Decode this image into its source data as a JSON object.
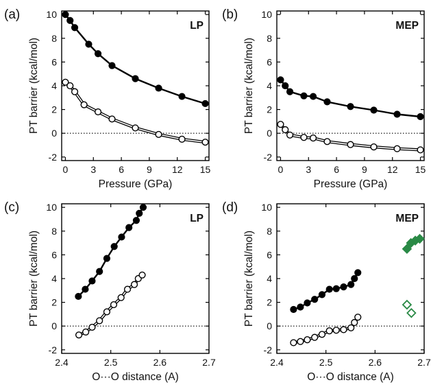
{
  "figure": {
    "panels": [
      {
        "letter": "(a)",
        "tag": "LP"
      },
      {
        "letter": "(b)",
        "tag": "MEP"
      },
      {
        "letter": "(c)",
        "tag": "LP"
      },
      {
        "letter": "(d)",
        "tag": "MEP"
      }
    ],
    "ylabel": "PT barrier (kcal/mol)",
    "xlabel_pressure": "Pressure (GPa)",
    "xlabel_distance": "O···O distance (A)"
  },
  "colors": {
    "ink": "#000000",
    "green": "#2a8a46"
  },
  "chart_data": [
    {
      "panel": "(a)",
      "type": "line",
      "title": "LP",
      "xlabel": "Pressure (GPa)",
      "ylabel": "PT barrier (kcal/mol)",
      "xlim": [
        -0.4,
        15.4
      ],
      "ylim": [
        -2.3,
        10.3
      ],
      "xticks": [
        0,
        3,
        6,
        9,
        12,
        15
      ],
      "yticks": [
        -2,
        0,
        2,
        4,
        6,
        8,
        10
      ],
      "reference_line": {
        "y": 0,
        "style": "dotted"
      },
      "series": [
        {
          "marker": "filled-circle",
          "x": [
            0,
            0.5,
            1,
            2.5,
            3.5,
            5,
            7.5,
            10,
            12.5,
            15
          ],
          "y": [
            10.0,
            9.5,
            8.9,
            7.5,
            6.7,
            5.7,
            4.6,
            3.8,
            3.1,
            2.5
          ]
        },
        {
          "marker": "open-circle",
          "x": [
            0,
            0.5,
            1,
            2,
            3.5,
            5,
            7.5,
            10,
            12.5,
            15
          ],
          "y": [
            4.3,
            4.0,
            3.5,
            2.4,
            1.8,
            1.2,
            0.45,
            -0.1,
            -0.5,
            -0.75
          ]
        }
      ]
    },
    {
      "panel": "(b)",
      "type": "line",
      "title": "MEP",
      "xlabel": "Pressure (GPa)",
      "ylabel": "PT barrier (kcal/mol)",
      "xlim": [
        -0.4,
        15.4
      ],
      "ylim": [
        -2.3,
        10.3
      ],
      "xticks": [
        0,
        3,
        6,
        9,
        12,
        15
      ],
      "yticks": [
        -2,
        0,
        2,
        4,
        6,
        8,
        10
      ],
      "reference_line": {
        "y": 0,
        "style": "dotted"
      },
      "series": [
        {
          "marker": "filled-circle",
          "x": [
            0,
            0.5,
            1,
            2.5,
            3.5,
            5,
            7.5,
            10,
            12.5,
            15
          ],
          "y": [
            4.5,
            4.0,
            3.5,
            3.15,
            3.1,
            2.65,
            2.25,
            1.95,
            1.6,
            1.4
          ]
        },
        {
          "marker": "open-circle",
          "x": [
            0,
            0.5,
            1,
            2.5,
            3.5,
            5,
            7.5,
            10,
            12.5,
            15
          ],
          "y": [
            0.75,
            0.3,
            -0.15,
            -0.35,
            -0.4,
            -0.7,
            -0.95,
            -1.15,
            -1.3,
            -1.4
          ]
        }
      ]
    },
    {
      "panel": "(c)",
      "type": "line",
      "title": "LP",
      "xlabel": "O···O distance (A)",
      "ylabel": "PT barrier (kcal/mol)",
      "xlim": [
        2.4,
        2.7
      ],
      "ylim": [
        -2.3,
        10.3
      ],
      "xticks": [
        2.4,
        2.5,
        2.6,
        2.7
      ],
      "yticks": [
        -2,
        0,
        2,
        4,
        6,
        8,
        10
      ],
      "reference_line": {
        "y": 0,
        "style": "dotted"
      },
      "series": [
        {
          "marker": "filled-circle",
          "x": [
            2.434,
            2.448,
            2.462,
            2.477,
            2.492,
            2.507,
            2.522,
            2.537,
            2.552,
            2.558,
            2.566
          ],
          "y": [
            2.5,
            3.1,
            3.8,
            4.6,
            5.7,
            6.7,
            7.5,
            8.3,
            8.9,
            9.5,
            10.0
          ]
        },
        {
          "marker": "open-circle",
          "x": [
            2.435,
            2.449,
            2.462,
            2.477,
            2.492,
            2.506,
            2.521,
            2.534,
            2.548,
            2.556,
            2.564
          ],
          "y": [
            -0.75,
            -0.5,
            -0.1,
            0.45,
            1.2,
            1.8,
            2.4,
            3.1,
            3.5,
            4.0,
            4.3
          ]
        }
      ]
    },
    {
      "panel": "(d)",
      "type": "scatter",
      "title": "MEP",
      "xlabel": "O···O distance (A)",
      "ylabel": "PT barrier (kcal/mol)",
      "xlim": [
        2.4,
        2.7
      ],
      "ylim": [
        -2.3,
        10.3
      ],
      "xticks": [
        2.4,
        2.5,
        2.6,
        2.7
      ],
      "yticks": [
        -2,
        0,
        2,
        4,
        6,
        8,
        10
      ],
      "reference_line": {
        "y": 0,
        "style": "dotted"
      },
      "series": [
        {
          "marker": "filled-circle",
          "connected": true,
          "x": [
            2.434,
            2.448,
            2.462,
            2.477,
            2.492,
            2.507,
            2.521,
            2.536,
            2.551,
            2.558,
            2.565
          ],
          "y": [
            1.4,
            1.6,
            1.95,
            2.25,
            2.65,
            3.1,
            3.15,
            3.3,
            3.5,
            4.0,
            4.5
          ]
        },
        {
          "marker": "open-circle",
          "connected": true,
          "x": [
            2.434,
            2.448,
            2.462,
            2.477,
            2.492,
            2.507,
            2.521,
            2.536,
            2.551,
            2.558,
            2.565
          ],
          "y": [
            -1.4,
            -1.3,
            -1.15,
            -0.95,
            -0.7,
            -0.4,
            -0.35,
            -0.3,
            -0.15,
            0.3,
            0.75
          ]
        },
        {
          "marker": "filled-diamond",
          "color": "#2a8a46",
          "connected": true,
          "x": [
            2.665,
            2.673,
            2.682,
            2.691
          ],
          "y": [
            6.5,
            7.0,
            7.2,
            7.35
          ]
        },
        {
          "marker": "open-diamond",
          "color": "#2a8a46",
          "connected": false,
          "x": [
            2.665,
            2.674
          ],
          "y": [
            1.8,
            1.1
          ]
        }
      ]
    }
  ]
}
